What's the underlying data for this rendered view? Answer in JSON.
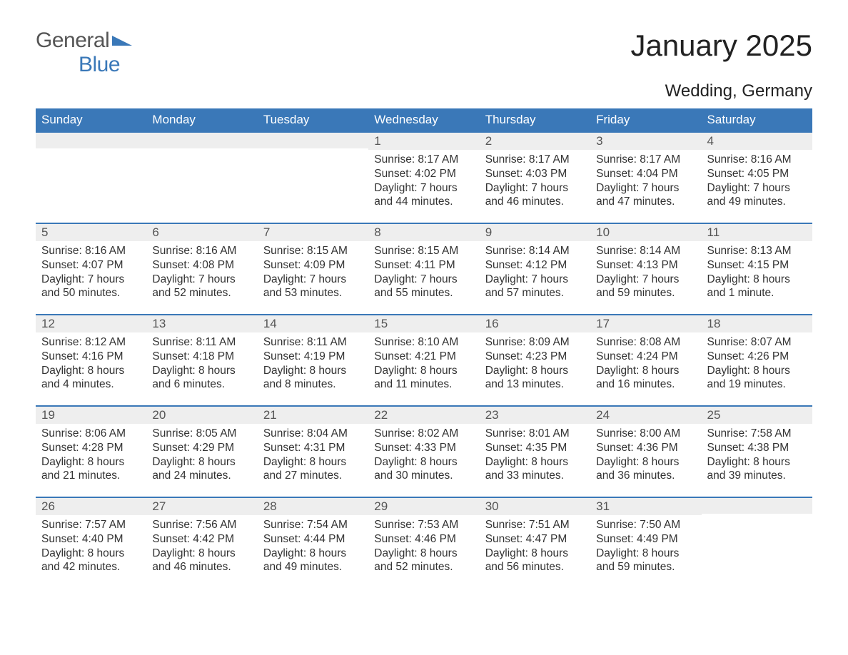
{
  "logo": {
    "text1": "General",
    "text2": "Blue",
    "color1": "#555555",
    "color2": "#3a78b8"
  },
  "title": "January 2025",
  "location": "Wedding, Germany",
  "colors": {
    "header_bg": "#3a78b8",
    "header_text": "#ffffff",
    "daynum_bg": "#eeeeee",
    "text": "#333333",
    "border": "#3a78b8"
  },
  "weekdays": [
    "Sunday",
    "Monday",
    "Tuesday",
    "Wednesday",
    "Thursday",
    "Friday",
    "Saturday"
  ],
  "weeks": [
    [
      null,
      null,
      null,
      {
        "n": "1",
        "sunrise": "8:17 AM",
        "sunset": "4:02 PM",
        "daylight": "7 hours and 44 minutes."
      },
      {
        "n": "2",
        "sunrise": "8:17 AM",
        "sunset": "4:03 PM",
        "daylight": "7 hours and 46 minutes."
      },
      {
        "n": "3",
        "sunrise": "8:17 AM",
        "sunset": "4:04 PM",
        "daylight": "7 hours and 47 minutes."
      },
      {
        "n": "4",
        "sunrise": "8:16 AM",
        "sunset": "4:05 PM",
        "daylight": "7 hours and 49 minutes."
      }
    ],
    [
      {
        "n": "5",
        "sunrise": "8:16 AM",
        "sunset": "4:07 PM",
        "daylight": "7 hours and 50 minutes."
      },
      {
        "n": "6",
        "sunrise": "8:16 AM",
        "sunset": "4:08 PM",
        "daylight": "7 hours and 52 minutes."
      },
      {
        "n": "7",
        "sunrise": "8:15 AM",
        "sunset": "4:09 PM",
        "daylight": "7 hours and 53 minutes."
      },
      {
        "n": "8",
        "sunrise": "8:15 AM",
        "sunset": "4:11 PM",
        "daylight": "7 hours and 55 minutes."
      },
      {
        "n": "9",
        "sunrise": "8:14 AM",
        "sunset": "4:12 PM",
        "daylight": "7 hours and 57 minutes."
      },
      {
        "n": "10",
        "sunrise": "8:14 AM",
        "sunset": "4:13 PM",
        "daylight": "7 hours and 59 minutes."
      },
      {
        "n": "11",
        "sunrise": "8:13 AM",
        "sunset": "4:15 PM",
        "daylight": "8 hours and 1 minute."
      }
    ],
    [
      {
        "n": "12",
        "sunrise": "8:12 AM",
        "sunset": "4:16 PM",
        "daylight": "8 hours and 4 minutes."
      },
      {
        "n": "13",
        "sunrise": "8:11 AM",
        "sunset": "4:18 PM",
        "daylight": "8 hours and 6 minutes."
      },
      {
        "n": "14",
        "sunrise": "8:11 AM",
        "sunset": "4:19 PM",
        "daylight": "8 hours and 8 minutes."
      },
      {
        "n": "15",
        "sunrise": "8:10 AM",
        "sunset": "4:21 PM",
        "daylight": "8 hours and 11 minutes."
      },
      {
        "n": "16",
        "sunrise": "8:09 AM",
        "sunset": "4:23 PM",
        "daylight": "8 hours and 13 minutes."
      },
      {
        "n": "17",
        "sunrise": "8:08 AM",
        "sunset": "4:24 PM",
        "daylight": "8 hours and 16 minutes."
      },
      {
        "n": "18",
        "sunrise": "8:07 AM",
        "sunset": "4:26 PM",
        "daylight": "8 hours and 19 minutes."
      }
    ],
    [
      {
        "n": "19",
        "sunrise": "8:06 AM",
        "sunset": "4:28 PM",
        "daylight": "8 hours and 21 minutes."
      },
      {
        "n": "20",
        "sunrise": "8:05 AM",
        "sunset": "4:29 PM",
        "daylight": "8 hours and 24 minutes."
      },
      {
        "n": "21",
        "sunrise": "8:04 AM",
        "sunset": "4:31 PM",
        "daylight": "8 hours and 27 minutes."
      },
      {
        "n": "22",
        "sunrise": "8:02 AM",
        "sunset": "4:33 PM",
        "daylight": "8 hours and 30 minutes."
      },
      {
        "n": "23",
        "sunrise": "8:01 AM",
        "sunset": "4:35 PM",
        "daylight": "8 hours and 33 minutes."
      },
      {
        "n": "24",
        "sunrise": "8:00 AM",
        "sunset": "4:36 PM",
        "daylight": "8 hours and 36 minutes."
      },
      {
        "n": "25",
        "sunrise": "7:58 AM",
        "sunset": "4:38 PM",
        "daylight": "8 hours and 39 minutes."
      }
    ],
    [
      {
        "n": "26",
        "sunrise": "7:57 AM",
        "sunset": "4:40 PM",
        "daylight": "8 hours and 42 minutes."
      },
      {
        "n": "27",
        "sunrise": "7:56 AM",
        "sunset": "4:42 PM",
        "daylight": "8 hours and 46 minutes."
      },
      {
        "n": "28",
        "sunrise": "7:54 AM",
        "sunset": "4:44 PM",
        "daylight": "8 hours and 49 minutes."
      },
      {
        "n": "29",
        "sunrise": "7:53 AM",
        "sunset": "4:46 PM",
        "daylight": "8 hours and 52 minutes."
      },
      {
        "n": "30",
        "sunrise": "7:51 AM",
        "sunset": "4:47 PM",
        "daylight": "8 hours and 56 minutes."
      },
      {
        "n": "31",
        "sunrise": "7:50 AM",
        "sunset": "4:49 PM",
        "daylight": "8 hours and 59 minutes."
      },
      null
    ]
  ],
  "labels": {
    "sunrise": "Sunrise: ",
    "sunset": "Sunset: ",
    "daylight": "Daylight: "
  }
}
